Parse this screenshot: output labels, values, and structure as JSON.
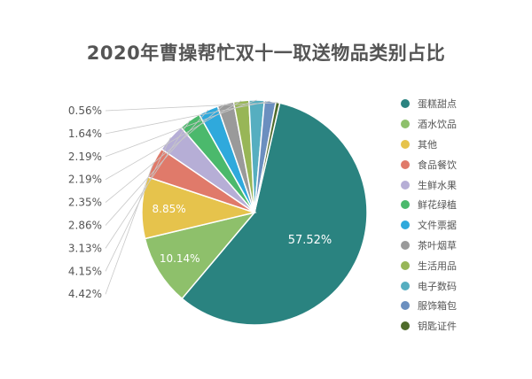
{
  "chart_data": {
    "type": "pie",
    "title": "2020年曹操帮忙双十一取送物品类别占比",
    "slices": [
      {
        "label": "蛋糕甜点",
        "value": 57.52,
        "value_label": "57.52%",
        "color": "#2a8380"
      },
      {
        "label": "酒水饮品",
        "value": 10.14,
        "value_label": "10.14%",
        "color": "#8ec06b"
      },
      {
        "label": "其他",
        "value": 8.85,
        "value_label": "8.85%",
        "color": "#e6c34c"
      },
      {
        "label": "食品餐饮",
        "value": 4.42,
        "value_label": "4.42%",
        "color": "#e07a6a"
      },
      {
        "label": "生鲜水果",
        "value": 4.15,
        "value_label": "4.15%",
        "color": "#b6aed6"
      },
      {
        "label": "鲜花绿植",
        "value": 3.13,
        "value_label": "3.13%",
        "color": "#4bb96c"
      },
      {
        "label": "文件票据",
        "value": 2.86,
        "value_label": "2.86%",
        "color": "#2fa9dc"
      },
      {
        "label": "茶叶烟草",
        "value": 2.35,
        "value_label": "2.35%",
        "color": "#9a9a9a"
      },
      {
        "label": "生活用品",
        "value": 2.19,
        "value_label": "2.19%",
        "color": "#98b657"
      },
      {
        "label": "电子数码",
        "value": 2.19,
        "value_label": "2.19%",
        "color": "#56aec0"
      },
      {
        "label": "服饰箱包",
        "value": 1.64,
        "value_label": "1.64%",
        "color": "#6b8fbf"
      },
      {
        "label": "钥匙证件",
        "value": 0.56,
        "value_label": "0.56%",
        "color": "#4e6b2a"
      }
    ],
    "legend_position": "right"
  }
}
